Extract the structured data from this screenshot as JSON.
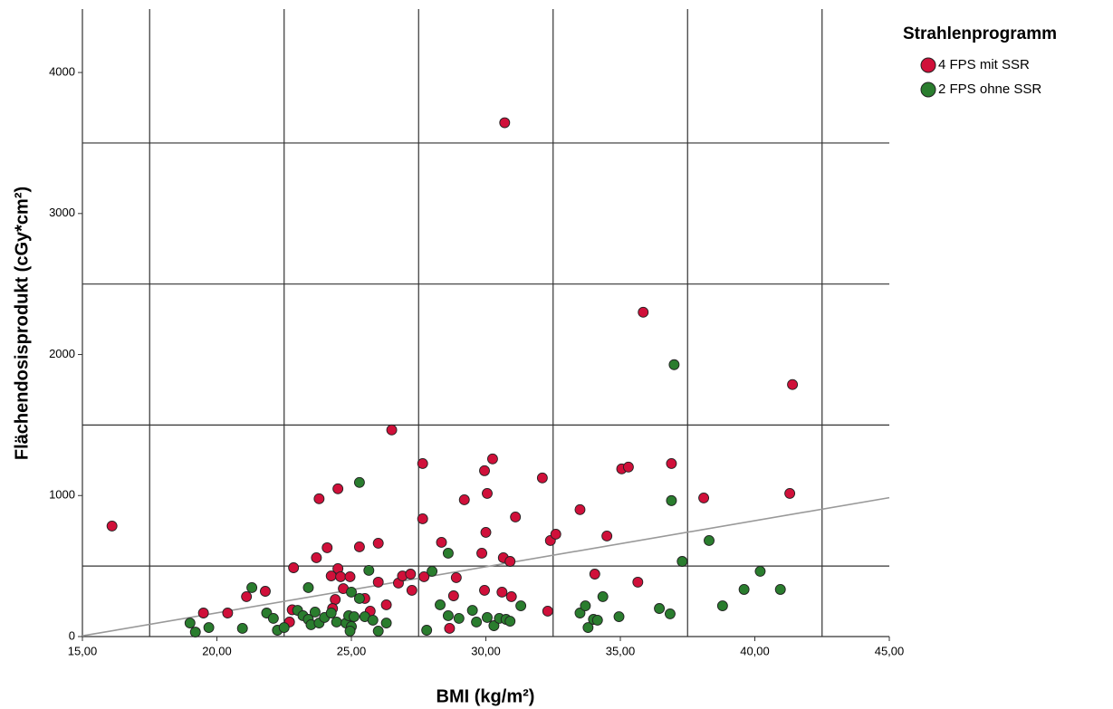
{
  "chart_data": {
    "type": "scatter",
    "x_label": "BMI (kg/m²)",
    "y_label": "Flächendosisprodukt (cGy*cm²)",
    "legend_title": "Strahlenprogramm",
    "xlim": [
      15,
      45
    ],
    "ylim": [
      0,
      4450
    ],
    "xticks": [
      {
        "value": 15,
        "label": "15,00"
      },
      {
        "value": 20,
        "label": "20,00"
      },
      {
        "value": 25,
        "label": "25,00"
      },
      {
        "value": 30,
        "label": "30,00"
      },
      {
        "value": 35,
        "label": "35,00"
      },
      {
        "value": 40,
        "label": "40,00"
      },
      {
        "value": 45,
        "label": "45,00"
      }
    ],
    "yticks": [
      0,
      1000,
      2000,
      3000,
      4000
    ],
    "xgrid": [
      17.5,
      22.5,
      27.5,
      32.5,
      37.5,
      42.5
    ],
    "ygrid": [
      500,
      1500,
      2500,
      3500
    ],
    "fit_line": {
      "x": [
        15,
        45
      ],
      "y": [
        5,
        985
      ],
      "color": "#999999"
    },
    "series": [
      {
        "name": "4 FPS mit SSR",
        "color": "#d0103a",
        "x": [
          16.1,
          19.5,
          20.4,
          21.1,
          21.8,
          22.85,
          22.8,
          22.7,
          23.7,
          23.8,
          24.1,
          24.5,
          24.25,
          24.5,
          24.6,
          24.95,
          24.7,
          24.4,
          24.3,
          25.3,
          25.5,
          25.7,
          26.0,
          26.0,
          26.3,
          26.5,
          26.75,
          26.9,
          27.2,
          27.65,
          27.65,
          27.7,
          27.25,
          28.35,
          28.9,
          28.8,
          28.65,
          29.2,
          29.85,
          29.95,
          30.0,
          30.05,
          30.25,
          29.95,
          30.6,
          30.65,
          30.9,
          30.95,
          31.1,
          30.7,
          32.1,
          32.3,
          32.4,
          32.6,
          33.5,
          34.05,
          34.5,
          35.05,
          35.3,
          35.65,
          35.85,
          36.9,
          38.1,
          41.3,
          41.4
        ],
        "values": [
          784,
          167,
          167,
          283,
          321,
          488,
          190,
          103,
          559,
          977,
          630,
          482,
          430,
          1048,
          424,
          424,
          340,
          263,
          199,
          636,
          270,
          180,
          662,
          386,
          225,
          1465,
          379,
          430,
          443,
          835,
          1227,
          424,
          328,
          668,
          418,
          289,
          58,
          970,
          591,
          1176,
          739,
          1015,
          1260,
          328,
          315,
          559,
          533,
          283,
          848,
          3644,
          1125,
          180,
          681,
          726,
          900,
          443,
          713,
          1189,
          1202,
          386,
          2300,
          1227,
          983,
          1015,
          1787
        ]
      },
      {
        "name": "2 FPS ohne SSR",
        "color": "#2a7d2e",
        "x": [
          19.0,
          19.2,
          19.7,
          20.95,
          21.3,
          21.85,
          22.1,
          22.25,
          22.5,
          23.0,
          23.2,
          23.4,
          23.4,
          23.5,
          23.65,
          23.8,
          24.0,
          24.25,
          24.45,
          24.8,
          24.9,
          25.0,
          25.0,
          25.1,
          25.3,
          25.3,
          25.5,
          25.65,
          25.8,
          26.0,
          26.3,
          24.95,
          27.8,
          28.0,
          28.3,
          28.6,
          28.6,
          29.0,
          29.5,
          29.65,
          30.05,
          30.3,
          30.5,
          30.75,
          30.9,
          31.3,
          33.5,
          33.7,
          33.8,
          34.0,
          34.15,
          34.35,
          34.95,
          36.45,
          36.85,
          36.9,
          37.0,
          37.3,
          38.3,
          38.8,
          39.6,
          40.2,
          40.95
        ],
        "values": [
          96,
          32,
          64,
          58,
          347,
          167,
          129,
          45,
          64,
          186,
          148,
          122,
          347,
          84,
          174,
          96,
          135,
          167,
          103,
          96,
          148,
          71,
          315,
          141,
          1093,
          270,
          141,
          469,
          116,
          39,
          96,
          39,
          45,
          463,
          225,
          591,
          148,
          129,
          186,
          103,
          135,
          77,
          129,
          122,
          109,
          218,
          167,
          218,
          64,
          122,
          116,
          283,
          141,
          199,
          161,
          964,
          1928,
          533,
          681,
          218,
          334,
          463,
          334
        ]
      }
    ]
  }
}
